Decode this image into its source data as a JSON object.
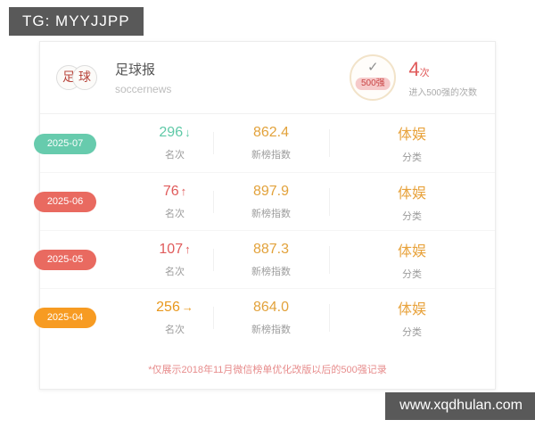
{
  "overlays": {
    "tg_badge": "TG: MYYJJPP",
    "watermark": "www.xqdhulan.com"
  },
  "header": {
    "account_name": "足球报",
    "account_handle": "soccernews",
    "avatar_char_1": "足",
    "avatar_char_2": "球",
    "ring_badge_label": "500强",
    "count_value": "4",
    "count_unit": "次",
    "count_caption": "进入500强的次数"
  },
  "icons": {
    "check": "✓",
    "trend_up": "↑",
    "trend_down": "↓",
    "trend_flat": "→"
  },
  "table": {
    "rows": [
      {
        "month": "2025-07",
        "theme": "green",
        "rank": "296",
        "trend": "down",
        "rank_label": "名次",
        "index": "862.4",
        "index_label": "新榜指数",
        "category": "体娱",
        "category_label": "分类"
      },
      {
        "month": "2025-06",
        "theme": "red",
        "rank": "76",
        "trend": "up",
        "rank_label": "名次",
        "index": "897.9",
        "index_label": "新榜指数",
        "category": "体娱",
        "category_label": "分类"
      },
      {
        "month": "2025-05",
        "theme": "red",
        "rank": "107",
        "trend": "up",
        "rank_label": "名次",
        "index": "887.3",
        "index_label": "新榜指数",
        "category": "体娱",
        "category_label": "分类"
      },
      {
        "month": "2025-04",
        "theme": "orange",
        "rank": "256",
        "trend": "flat",
        "rank_label": "名次",
        "index": "864.0",
        "index_label": "新榜指数",
        "category": "体娱",
        "category_label": "分类"
      }
    ]
  },
  "footnote": "*仅展示2018年11月微信榜单优化改版以后的500强记录",
  "colors": {
    "badge_bg": "#595959",
    "green": "#67cbad",
    "red": "#e96a60",
    "orange": "#f79b22",
    "index_orange": "#e2a23b",
    "footnote_pink": "#e78c8c"
  }
}
